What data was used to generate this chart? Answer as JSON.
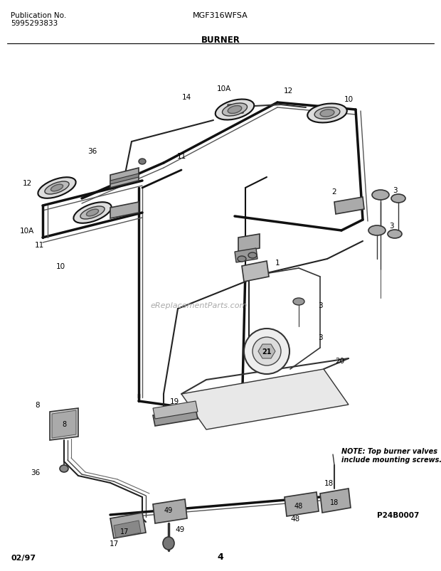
{
  "title_model": "MGF316WFSA",
  "title_section": "BURNER",
  "pub_no_label": "Publication No.",
  "pub_no": "5995293833",
  "note_text": "NOTE: Top burner valves\ninclude mounting screws.",
  "page_num": "4",
  "date_code": "02/97",
  "part_code": "P24B0007",
  "bg_color": "#ffffff",
  "fig_width": 6.2,
  "fig_height": 8.04,
  "dpi": 100,
  "watermark_text": "eReplacementParts.com"
}
